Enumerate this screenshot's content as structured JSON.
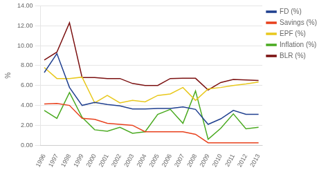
{
  "chart_data": {
    "type": "line",
    "x": [
      1996,
      1997,
      1998,
      1999,
      2000,
      2001,
      2002,
      2003,
      2004,
      2005,
      2006,
      2007,
      2008,
      2009,
      2010,
      2011,
      2012,
      2013
    ],
    "series": [
      {
        "name": "FD (%)",
        "color": "#1f3f8f",
        "values": [
          7.3,
          9.2,
          5.8,
          4.0,
          4.3,
          4.1,
          3.95,
          3.65,
          3.65,
          3.7,
          3.7,
          3.85,
          3.6,
          2.1,
          2.65,
          3.5,
          3.1,
          3.1
        ]
      },
      {
        "name": "Savings (%)",
        "color": "#e8401c",
        "values": [
          4.15,
          4.2,
          4.0,
          2.7,
          2.6,
          2.2,
          2.1,
          2.0,
          1.35,
          1.35,
          1.35,
          1.35,
          1.1,
          0.25,
          0.25,
          0.25,
          0.25,
          0.25
        ]
      },
      {
        "name": "EPF (%)",
        "color": "#e8c81c",
        "values": [
          7.8,
          6.7,
          6.7,
          6.84,
          4.25,
          5.0,
          4.25,
          4.5,
          4.35,
          5.0,
          5.15,
          5.8,
          4.5,
          5.65,
          5.8,
          6.0,
          6.15,
          6.35
        ]
      },
      {
        "name": "Inflation (%)",
        "color": "#4aaa20",
        "values": [
          3.5,
          2.7,
          5.3,
          2.8,
          1.55,
          1.4,
          1.8,
          1.2,
          1.35,
          3.1,
          3.6,
          2.2,
          5.45,
          0.6,
          1.7,
          3.15,
          1.65,
          1.8
        ]
      },
      {
        "name": "BLR (%)",
        "color": "#7b1010",
        "values": [
          8.55,
          9.35,
          12.3,
          6.8,
          6.8,
          6.7,
          6.7,
          6.2,
          6.0,
          6.0,
          6.7,
          6.73,
          6.72,
          5.55,
          6.3,
          6.6,
          6.55,
          6.5
        ]
      }
    ],
    "ylabel": "%",
    "xlim": [
      1995.7,
      2013.3
    ],
    "xticks": [
      1996,
      1997,
      1998,
      1999,
      2000,
      2001,
      2002,
      2003,
      2004,
      2005,
      2006,
      2007,
      2008,
      2009,
      2010,
      2011,
      2012,
      2013
    ],
    "ylim": [
      0,
      14
    ],
    "yticks": [
      {
        "value": 0,
        "label": "0.00"
      },
      {
        "value": 2,
        "label": "2.00"
      },
      {
        "value": 4,
        "label": "4.00"
      },
      {
        "value": 6,
        "label": "6.00"
      },
      {
        "value": 8,
        "label": "8.00"
      },
      {
        "value": 10,
        "label": "10.00"
      },
      {
        "value": 12,
        "label": "12.00"
      },
      {
        "value": 14,
        "label": "14.00"
      }
    ],
    "grid": "y",
    "legend": "right"
  }
}
